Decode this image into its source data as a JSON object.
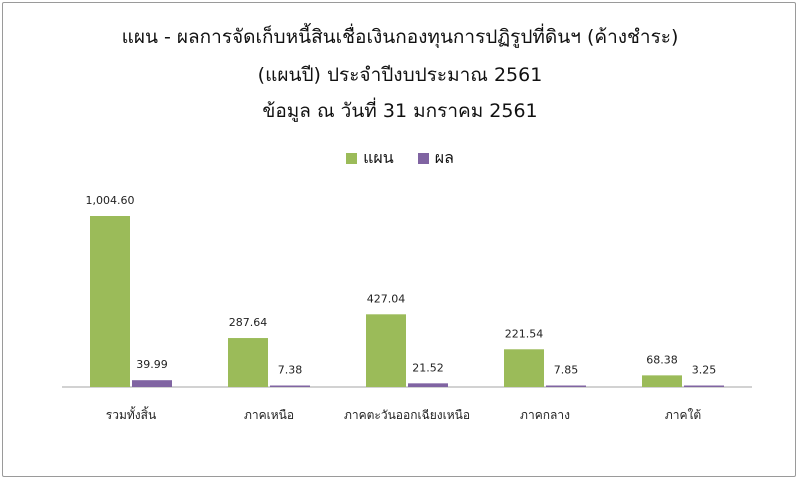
{
  "title_lines": [
    "แผน - ผลการจัดเก็บหนี้สินเชื่อเงินกองทุนการปฏิรูปที่ดินฯ (ค้างชำระ)",
    "(แผนปี)  ประจำปีงบประมาณ 2561",
    "ข้อมูล ณ วันที่ 31 มกราคม 2561"
  ],
  "colors": {
    "plan": "#9bbb59",
    "result": "#8064a2",
    "axis": "#a6a6a6",
    "border": "#9a9a9a"
  },
  "chart_data": {
    "type": "bar",
    "categories": [
      "รวมทั้งสิ้น",
      "ภาคเหนือ",
      "ภาคตะวันออกเฉียงเหนือ",
      "ภาคกลาง",
      "ภาคใต้"
    ],
    "series": [
      {
        "name": "แผน",
        "values": [
          1004.6,
          287.64,
          427.04,
          221.54,
          68.38
        ],
        "labels": [
          "1,004.60",
          "287.64",
          "427.04",
          "221.54",
          "68.38"
        ]
      },
      {
        "name": "ผล",
        "values": [
          39.99,
          7.38,
          21.52,
          7.85,
          3.25
        ],
        "labels": [
          "39.99",
          "7.38",
          "21.52",
          "7.85",
          "3.25"
        ]
      }
    ],
    "ylim": [
      0,
      1004.6
    ],
    "legend_position": "top-center",
    "grid": false
  }
}
